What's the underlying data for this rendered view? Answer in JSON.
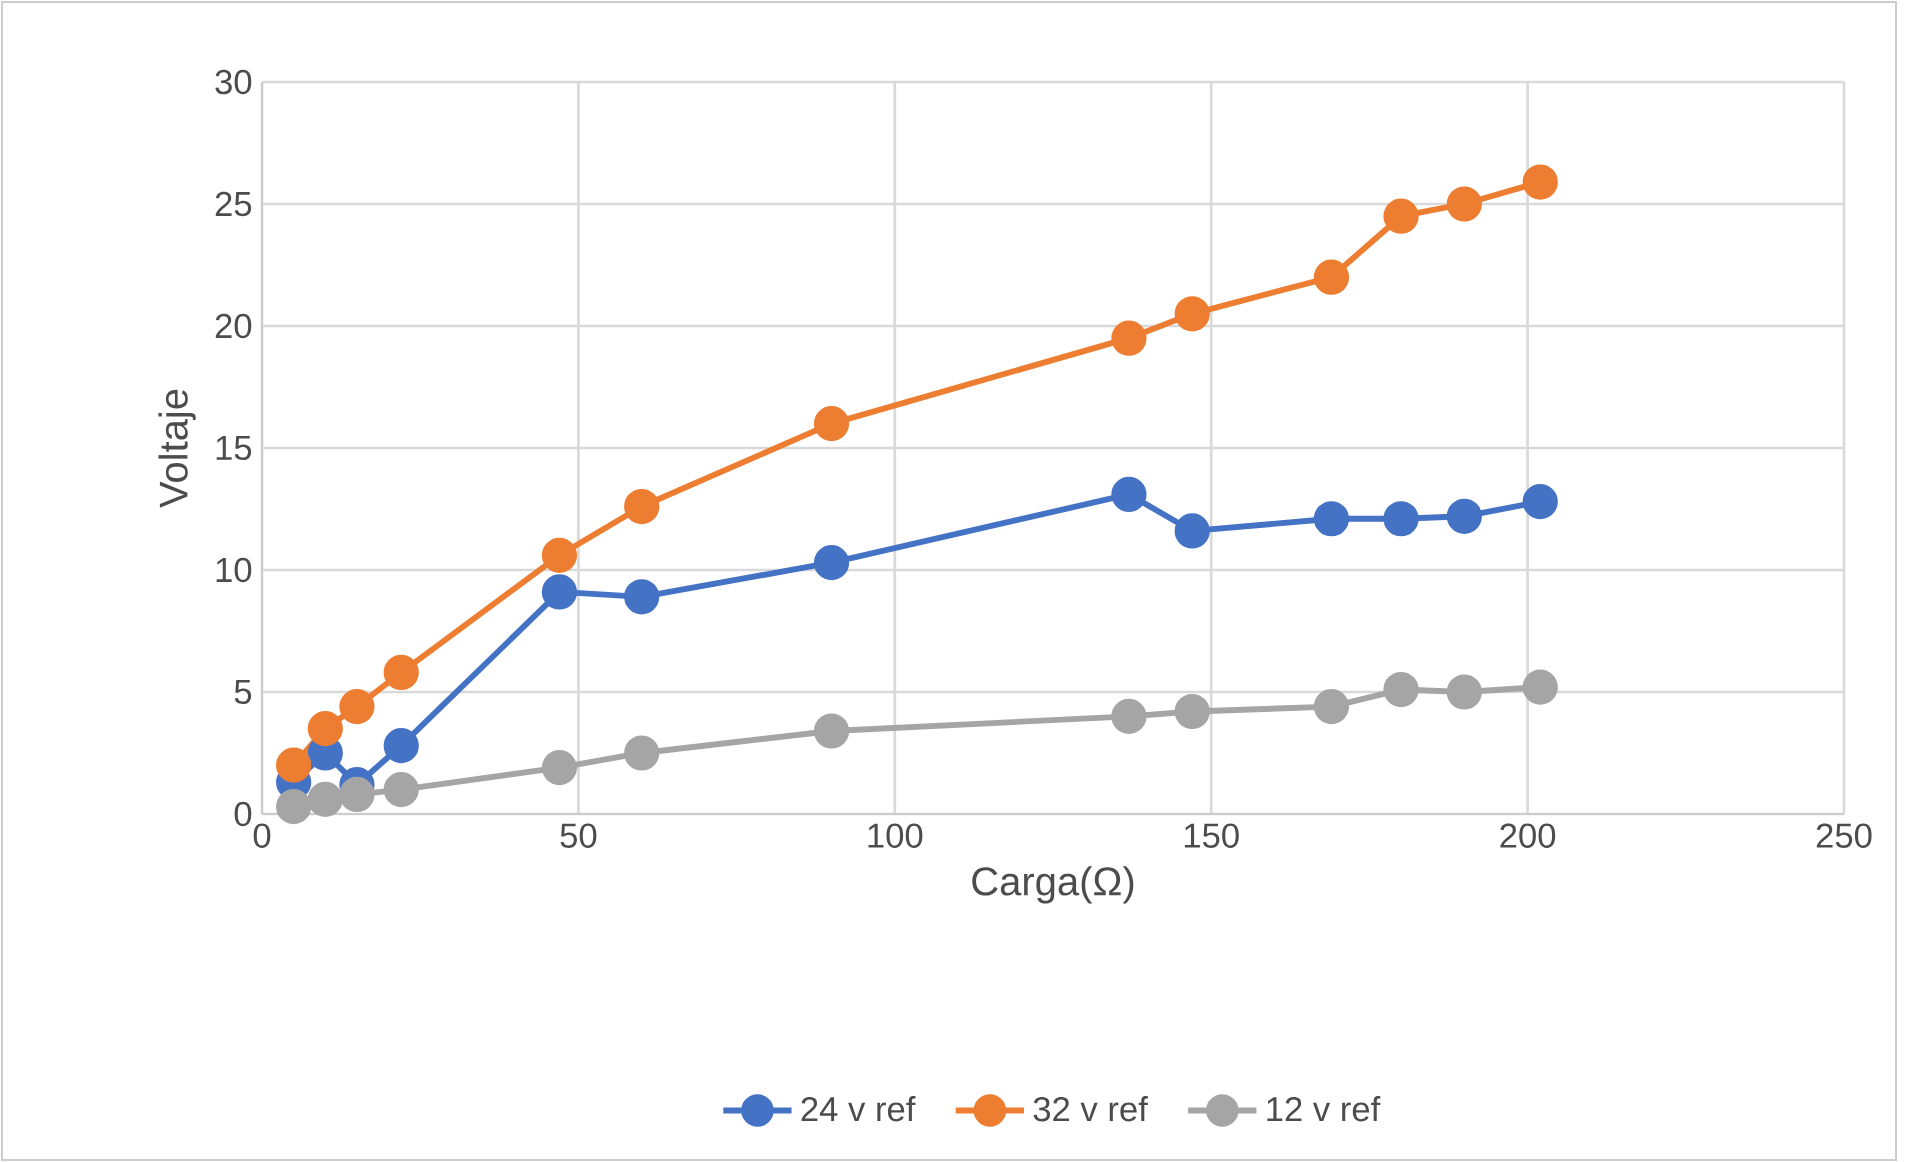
{
  "chart_data": {
    "type": "line",
    "xlabel": "Carga(Ω)",
    "ylabel": "Voltaje",
    "x": [
      5,
      10,
      15,
      22,
      47,
      60,
      90,
      137,
      147,
      169,
      180,
      190,
      202
    ],
    "series": [
      {
        "name": "24 v ref",
        "color": "#4472c4",
        "values": [
          1.3,
          2.5,
          1.2,
          2.8,
          9.1,
          8.9,
          10.3,
          13.1,
          11.6,
          12.1,
          12.1,
          12.2,
          12.8
        ]
      },
      {
        "name": "32 v ref",
        "color": "#ed7d31",
        "values": [
          2.0,
          3.5,
          4.4,
          5.8,
          10.6,
          12.6,
          16.0,
          19.5,
          20.5,
          22.0,
          24.5,
          25.0,
          25.9
        ]
      },
      {
        "name": "12 v ref",
        "color": "#a5a5a5",
        "values": [
          0.3,
          0.6,
          0.8,
          1.0,
          1.9,
          2.5,
          3.4,
          4.0,
          4.2,
          4.4,
          5.1,
          5.0,
          5.2
        ]
      }
    ],
    "xlim": [
      0,
      250
    ],
    "xticks": [
      0,
      50,
      100,
      150,
      200,
      250
    ],
    "ylim": [
      0,
      30
    ],
    "yticks": [
      0,
      5,
      10,
      15,
      20,
      25,
      30
    ],
    "grid": true,
    "legend": "bottom",
    "marker": "circle",
    "line_style": "solid"
  }
}
